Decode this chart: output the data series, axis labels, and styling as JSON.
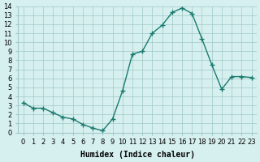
{
  "xlabel": "Humidex (Indice chaleur)",
  "ylabel": "",
  "x": [
    0,
    1,
    2,
    3,
    4,
    5,
    6,
    7,
    8,
    9,
    10,
    11,
    12,
    13,
    14,
    15,
    16,
    17,
    18,
    19,
    20,
    21,
    22,
    23
  ],
  "y": [
    3.3,
    2.7,
    2.7,
    2.2,
    1.7,
    1.5,
    0.9,
    0.5,
    0.2,
    1.5,
    4.6,
    8.7,
    9.0,
    11.0,
    11.9,
    13.3,
    13.8,
    13.2,
    10.4,
    7.5,
    4.8,
    6.2,
    6.2,
    6.1
  ],
  "line_color": "#1a7a6e",
  "marker": "+",
  "marker_size": 4,
  "bg_color": "#d6f0ef",
  "grid_color": "#a0c8c8",
  "ylim": [
    0,
    14
  ],
  "xlim": [
    -0.5,
    23.5
  ],
  "yticks": [
    0,
    1,
    2,
    3,
    4,
    5,
    6,
    7,
    8,
    9,
    10,
    11,
    12,
    13,
    14
  ],
  "xticks": [
    0,
    1,
    2,
    3,
    4,
    5,
    6,
    7,
    8,
    9,
    10,
    11,
    12,
    13,
    14,
    15,
    16,
    17,
    18,
    19,
    20,
    21,
    22,
    23
  ],
  "title_fontsize": 7,
  "label_fontsize": 7,
  "tick_fontsize": 6
}
